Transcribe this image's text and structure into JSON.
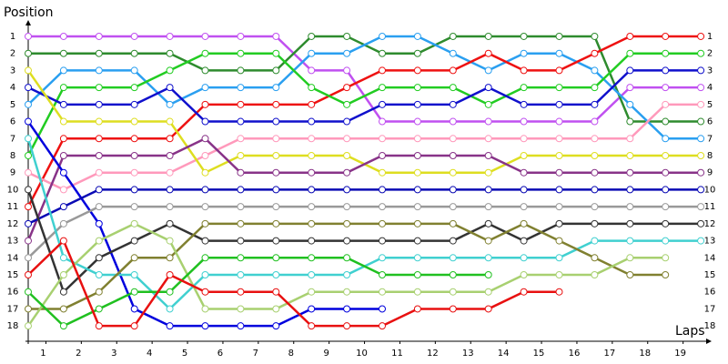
{
  "chart_data": {
    "type": "line",
    "y_label": "Position",
    "x_label": "Laps",
    "x": [
      0,
      1,
      2,
      3,
      4,
      5,
      6,
      7,
      8,
      9,
      10,
      11,
      12,
      13,
      14,
      15,
      16,
      17,
      18,
      19
    ],
    "xlim": [
      0,
      19.2
    ],
    "xticks": [
      {
        "value": 0.5,
        "label": "1"
      },
      {
        "value": 1.5,
        "label": "2"
      },
      {
        "value": 2.5,
        "label": "3"
      },
      {
        "value": 3.5,
        "label": "4"
      },
      {
        "value": 4.5,
        "label": "5"
      },
      {
        "value": 5.5,
        "label": "6"
      },
      {
        "value": 6.5,
        "label": "7"
      },
      {
        "value": 7.5,
        "label": "8"
      },
      {
        "value": 8.5,
        "label": "9"
      },
      {
        "value": 9.5,
        "label": "10"
      },
      {
        "value": 10.5,
        "label": "11"
      },
      {
        "value": 11.5,
        "label": "12"
      },
      {
        "value": 12.5,
        "label": "13"
      },
      {
        "value": 13.5,
        "label": "14"
      },
      {
        "value": 14.5,
        "label": "15"
      },
      {
        "value": 15.5,
        "label": "16"
      },
      {
        "value": 16.5,
        "label": "17"
      },
      {
        "value": 17.5,
        "label": "18"
      },
      {
        "value": 18.5,
        "label": "19"
      }
    ],
    "ylim": [
      0.2,
      18.9
    ],
    "yticks": [
      1,
      2,
      3,
      4,
      5,
      6,
      7,
      8,
      9,
      10,
      11,
      12,
      13,
      14,
      15,
      16,
      17,
      18
    ],
    "series": [
      {
        "color": "#c050f0",
        "values": [
          1,
          1,
          1,
          1,
          1,
          1,
          1,
          1,
          3,
          3,
          6,
          6,
          6,
          6,
          6,
          6,
          6,
          4,
          4,
          4
        ]
      },
      {
        "color": "#2e8b2e",
        "values": [
          2,
          2,
          2,
          2,
          2,
          3,
          3,
          3,
          1,
          1,
          2,
          2,
          1,
          1,
          1,
          1,
          1,
          6,
          6,
          6
        ]
      },
      {
        "color": "#2a9ff0",
        "values": [
          5,
          3,
          3,
          3,
          5,
          4,
          4,
          4,
          2,
          2,
          1,
          1,
          2,
          3,
          2,
          2,
          3,
          5,
          7,
          7
        ]
      },
      {
        "color": "#ee1111",
        "values": [
          11,
          7,
          7,
          7,
          7,
          5,
          5,
          5,
          5,
          4,
          3,
          3,
          3,
          2,
          3,
          3,
          2,
          1,
          1,
          1
        ]
      },
      {
        "color": "#22cc22",
        "values": [
          8,
          4,
          4,
          4,
          3,
          2,
          2,
          2,
          4,
          5,
          4,
          4,
          4,
          5,
          4,
          4,
          4,
          2,
          2,
          2
        ]
      },
      {
        "color": "#1010cc",
        "values": [
          4,
          5,
          5,
          5,
          4,
          6,
          6,
          6,
          6,
          6,
          5,
          5,
          5,
          4,
          5,
          5,
          5,
          3,
          3,
          3
        ]
      },
      {
        "color": "#ff99bb",
        "values": [
          9,
          10,
          9,
          9,
          9,
          8,
          7,
          7,
          7,
          7,
          7,
          7,
          7,
          7,
          7,
          7,
          7,
          7,
          5,
          5
        ]
      },
      {
        "color": "#dede20",
        "values": [
          3,
          6,
          6,
          6,
          6,
          9,
          8,
          8,
          8,
          8,
          9,
          9,
          9,
          9,
          8,
          8,
          8,
          8,
          8,
          8
        ]
      },
      {
        "color": "#883388",
        "values": [
          13,
          8,
          8,
          8,
          8,
          7,
          9,
          9,
          9,
          9,
          8,
          8,
          8,
          8,
          9,
          9,
          9,
          9,
          9,
          9
        ]
      },
      {
        "color": "#0000dd",
        "values": [
          6,
          9,
          12,
          17,
          18,
          18,
          18,
          18,
          17,
          17,
          17,
          null,
          null,
          null,
          null,
          null,
          null,
          null,
          null,
          null
        ]
      },
      {
        "color": "#0a0ab4",
        "values": [
          12,
          11,
          10,
          10,
          10,
          10,
          10,
          10,
          10,
          10,
          10,
          10,
          10,
          10,
          10,
          10,
          10,
          10,
          10,
          10
        ]
      },
      {
        "color": "#999999",
        "values": [
          14,
          12,
          11,
          11,
          11,
          11,
          11,
          11,
          11,
          11,
          11,
          11,
          11,
          11,
          11,
          11,
          11,
          11,
          11,
          11
        ]
      },
      {
        "color": "#333333",
        "values": [
          10,
          16,
          14,
          13,
          12,
          13,
          13,
          13,
          13,
          13,
          13,
          13,
          13,
          12,
          13,
          12,
          12,
          12,
          12,
          12
        ]
      },
      {
        "color": "#40d0d0",
        "values": [
          7,
          14,
          15,
          15,
          17,
          15,
          15,
          15,
          15,
          15,
          14,
          14,
          14,
          14,
          14,
          14,
          13,
          13,
          13,
          13
        ]
      },
      {
        "color": "#808030",
        "values": [
          17,
          17,
          16,
          14,
          14,
          12,
          12,
          12,
          12,
          12,
          12,
          12,
          12,
          13,
          12,
          13,
          14,
          15,
          15,
          null
        ]
      },
      {
        "color": "#a8d070",
        "values": [
          18,
          15,
          13,
          12,
          13,
          17,
          17,
          17,
          16,
          16,
          16,
          16,
          16,
          16,
          15,
          15,
          15,
          14,
          14,
          null
        ]
      },
      {
        "color": "#20c020",
        "values": [
          16,
          18,
          17,
          16,
          16,
          14,
          14,
          14,
          14,
          14,
          15,
          15,
          15,
          15,
          null,
          null,
          null,
          null,
          null,
          null
        ]
      },
      {
        "color": "#e81010",
        "values": [
          15,
          13,
          18,
          18,
          15,
          16,
          16,
          16,
          18,
          18,
          18,
          17,
          17,
          17,
          16,
          16,
          null,
          null,
          null,
          null
        ]
      }
    ]
  }
}
